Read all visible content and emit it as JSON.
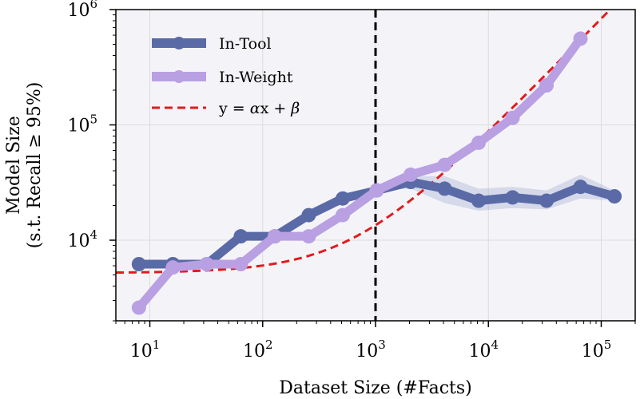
{
  "chart_data": {
    "type": "line",
    "xscale": "log",
    "yscale": "log",
    "xlim": [
      5,
      200000
    ],
    "ylim": [
      2000,
      1000000
    ],
    "xlabel": "Dataset Size (#Facts)",
    "ylabel": [
      "Model Size",
      "(s.t. Recall ≥ 95%)"
    ],
    "xticks": [
      {
        "value": 10,
        "base": "10",
        "exp": "1"
      },
      {
        "value": 100,
        "base": "10",
        "exp": "2"
      },
      {
        "value": 1000,
        "base": "10",
        "exp": "3"
      },
      {
        "value": 10000,
        "base": "10",
        "exp": "4"
      },
      {
        "value": 100000,
        "base": "10",
        "exp": "5"
      }
    ],
    "yticks": [
      {
        "value": 10000,
        "base": "10",
        "exp": "4"
      },
      {
        "value": 100000,
        "base": "10",
        "exp": "5"
      },
      {
        "value": 1000000,
        "base": "10",
        "exp": "6"
      }
    ],
    "vline_x": 1000,
    "legend_position": "top-left",
    "grid": true,
    "series": [
      {
        "name": "In-Tool",
        "color": "#5a6aa6",
        "band_color": "#9aa7d0",
        "x": [
          8,
          16,
          32,
          64,
          128,
          256,
          512,
          1024,
          2048,
          4096,
          8192,
          16384,
          32768,
          65536,
          131072
        ],
        "y": [
          6200,
          6200,
          6200,
          10800,
          10800,
          16500,
          23000,
          27000,
          32000,
          28000,
          22000,
          23500,
          22000,
          29000,
          24000
        ],
        "band_low": [
          6200,
          6200,
          6200,
          10800,
          10800,
          16500,
          23000,
          27000,
          28000,
          21000,
          18000,
          19000,
          18500,
          23000,
          22000
        ],
        "band_high": [
          6200,
          6200,
          6200,
          10800,
          10800,
          16500,
          23000,
          27500,
          36000,
          36000,
          28000,
          29000,
          27000,
          37000,
          27000
        ]
      },
      {
        "name": "In-Weight",
        "color": "#b9a0e2",
        "x": [
          8,
          16,
          32,
          64,
          128,
          256,
          512,
          1024,
          2048,
          4096,
          8192,
          16384,
          32768,
          65536
        ],
        "y": [
          2600,
          5800,
          6200,
          6200,
          10800,
          10800,
          16500,
          27000,
          37000,
          45000,
          70000,
          115000,
          220000,
          560000
        ]
      }
    ],
    "fit": {
      "name": "y = αx + β",
      "label_main": "y = ",
      "alpha": "α",
      "label_mid": "x + ",
      "beta": "β",
      "color": "#e31a1c",
      "alpha_value": 8.3,
      "beta_value": 5200
    }
  }
}
